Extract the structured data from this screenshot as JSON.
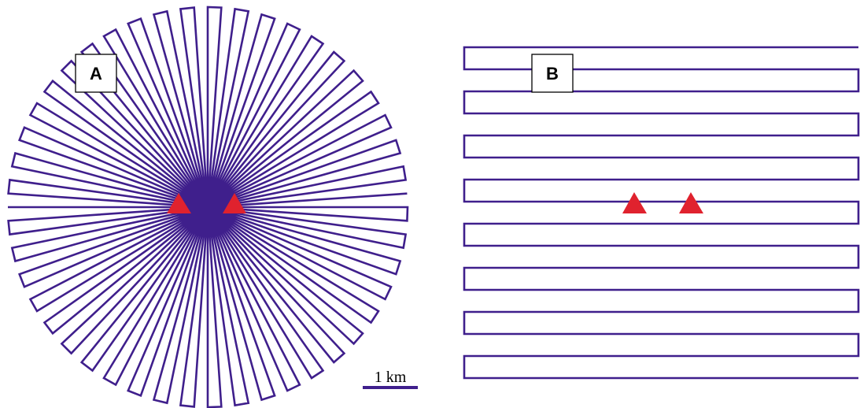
{
  "panels": [
    {
      "id": "A",
      "label": "A",
      "pattern": "radial"
    },
    {
      "id": "B",
      "label": "B",
      "pattern": "parallel-lines"
    }
  ],
  "scale_bar": {
    "label": "1 km"
  },
  "colors": {
    "track": "#3f1f8c",
    "marker": "#e0222e",
    "label_border": "#000000"
  },
  "icons": {
    "marker": "red-triangle-icon"
  }
}
